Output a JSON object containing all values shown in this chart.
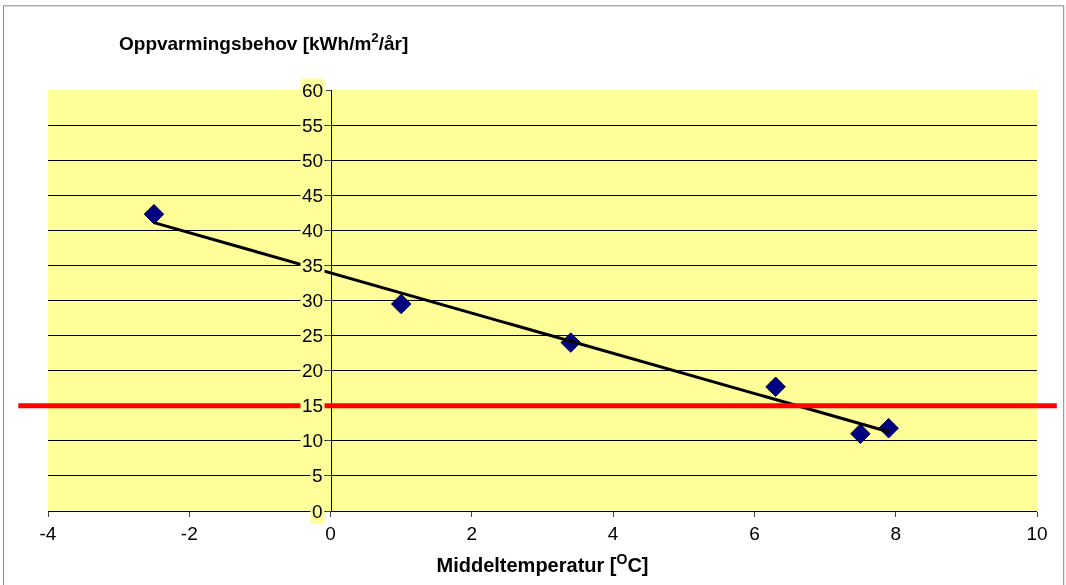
{
  "chart_data": {
    "type": "scatter",
    "ylabel": "Oppvarmingsbehov [kWh/m$^{2}$/år]",
    "xlabel": "Middeltemperatur [$^{O}$C]",
    "series": [
      {
        "color": "#000080",
        "marker": "diamond",
        "x": [
          -2.5,
          1.0,
          3.4,
          6.3,
          7.5,
          7.9
        ],
        "values": [
          42.3,
          29.5,
          24,
          17.7,
          11,
          11.8
        ]
      },
      {
        "type": "line",
        "color": "#000000",
        "marker": "none",
        "x": [
          -2.5,
          7.9
        ],
        "values": [
          41.1,
          11.3
        ]
      }
    ],
    "xlim": [
      -4,
      10
    ],
    "xticks": [
      -4,
      -2,
      0,
      2,
      4,
      6,
      8,
      10
    ],
    "ylim": [
      0,
      60
    ],
    "yticks": [
      0,
      5,
      10,
      15,
      20,
      25,
      30,
      35,
      40,
      45,
      50,
      55,
      60
    ],
    "grid": "y",
    "ref_lines": [
      {
        "axis": "y",
        "value": 15,
        "color": "#ff0000",
        "line_style": "solid"
      }
    ]
  }
}
